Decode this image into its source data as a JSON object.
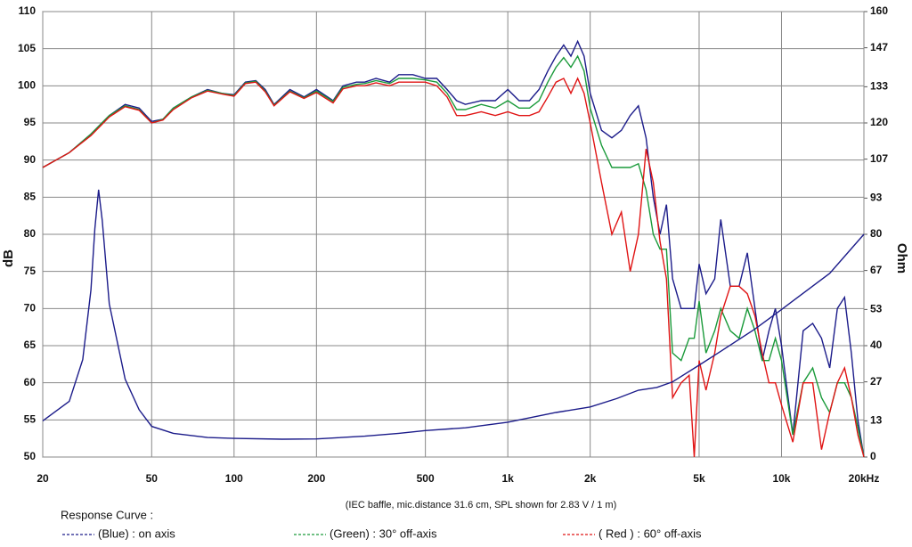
{
  "chart_data": {
    "type": "line",
    "x_log_scale": true,
    "grid": true,
    "y_label": "dB",
    "y2_label": "Ohm",
    "annotation": "(IEC baffle, mic.distance 31.6 cm, SPL shown for 2.83 V / 1 m)",
    "legend_title": "Response Curve :",
    "xlim": [
      20,
      20000
    ],
    "xticks": [
      20,
      50,
      100,
      200,
      500,
      {
        "value": 1000,
        "label": "1k"
      },
      {
        "value": 2000,
        "label": "2k"
      },
      {
        "value": 5000,
        "label": "5k"
      },
      {
        "value": 10000,
        "label": "10k"
      },
      {
        "value": 20000,
        "label": "20kHz"
      }
    ],
    "ylim": [
      50,
      110
    ],
    "yticks": [
      50,
      55,
      60,
      65,
      70,
      75,
      80,
      85,
      90,
      95,
      100,
      105,
      110
    ],
    "y2lim": [
      0,
      160
    ],
    "y2ticks": [
      0,
      13,
      27,
      40,
      53,
      67,
      80,
      93,
      107,
      120,
      133,
      147,
      160
    ],
    "x": [
      20,
      25,
      30,
      35,
      40,
      45,
      50,
      55,
      60,
      70,
      80,
      90,
      100,
      110,
      120,
      130,
      140,
      160,
      180,
      200,
      230,
      250,
      280,
      300,
      330,
      370,
      400,
      450,
      500,
      550,
      600,
      650,
      700,
      800,
      900,
      1000,
      1100,
      1200,
      1300,
      1400,
      1500,
      1600,
      1700,
      1800,
      1900,
      2000,
      2200,
      2400,
      2600,
      2800,
      3000,
      3200,
      3400,
      3600,
      3800,
      4000,
      4300,
      4600,
      4800,
      5000,
      5300,
      5700,
      6000,
      6500,
      7000,
      7500,
      8000,
      8500,
      9000,
      9500,
      10000,
      11000,
      12000,
      13000,
      14000,
      15000,
      16000,
      17000,
      18000,
      19000,
      20000
    ],
    "series": [
      {
        "name": "(Blue)  : on axis",
        "color": "#1c1c8a",
        "values": [
          89,
          91,
          93.5,
          96,
          97.5,
          97,
          95.2,
          95.5,
          97,
          98.5,
          99.5,
          99,
          98.8,
          100.5,
          100.7,
          99.5,
          97.5,
          99.5,
          98.5,
          99.5,
          98,
          100,
          100.5,
          100.5,
          101,
          100.5,
          101.5,
          101.5,
          101,
          101,
          99.5,
          98,
          97.5,
          98,
          98,
          99.5,
          98,
          98,
          99.5,
          102,
          104,
          105.5,
          104,
          106,
          104,
          99,
          94,
          93,
          94,
          96,
          97.3,
          93,
          85,
          80,
          84,
          74,
          70,
          70,
          70,
          76,
          72,
          74,
          82,
          73,
          73,
          77.5,
          70,
          63,
          67,
          70,
          65,
          53,
          67,
          68,
          66,
          62,
          70,
          71.5,
          64,
          55,
          50
        ]
      },
      {
        "name": "(Green) : 30° off-axis",
        "color": "#1a9a3a",
        "values": [
          89,
          91,
          93.5,
          96,
          97.3,
          96.8,
          95,
          95.5,
          97,
          98.5,
          99.4,
          99,
          98.7,
          100.4,
          100.6,
          99.3,
          97.4,
          99.3,
          98.4,
          99.3,
          97.9,
          99.8,
          100.2,
          100.3,
          100.7,
          100.3,
          101,
          101,
          100.8,
          100.5,
          99,
          96.8,
          96.8,
          97.5,
          97,
          98,
          97,
          97,
          98,
          100.5,
          102.5,
          103.8,
          102.5,
          104,
          102,
          97,
          92,
          89,
          89,
          89,
          89.5,
          86,
          80,
          78,
          78,
          64,
          63,
          66,
          66,
          71,
          64,
          67,
          70,
          67,
          66,
          70,
          67,
          63,
          63,
          66,
          63,
          53,
          60,
          62,
          58,
          56,
          60,
          60,
          58,
          54,
          50
        ]
      },
      {
        "name": "( Red ) : 60° off-axis",
        "color": "#e01414",
        "values": [
          89,
          91,
          93.3,
          95.8,
          97.2,
          96.7,
          95,
          95.4,
          96.8,
          98.4,
          99.3,
          98.9,
          98.6,
          100.3,
          100.5,
          99.2,
          97.3,
          99.2,
          98.3,
          99.1,
          97.7,
          99.6,
          100,
          100,
          100.4,
          100,
          100.5,
          100.5,
          100.5,
          100,
          98.5,
          96,
          96,
          96.5,
          96,
          96.5,
          96,
          96,
          96.5,
          98.5,
          100.5,
          101,
          99,
          101,
          99,
          95,
          87,
          80,
          83,
          75,
          80,
          91.5,
          87,
          79,
          74,
          58,
          60,
          61,
          50,
          63,
          59,
          64,
          69,
          73,
          73,
          72,
          69,
          64,
          60,
          60,
          57,
          52,
          60,
          60,
          51,
          56,
          60,
          62,
          58,
          53,
          50
        ]
      },
      {
        "axis": "y2",
        "color": "#1c1c8a",
        "x": [
          20,
          25,
          28,
          30,
          31,
          32,
          33,
          35,
          40,
          45,
          50,
          60,
          80,
          100,
          150,
          200,
          300,
          400,
          500,
          700,
          1000,
          1500,
          2000,
          2500,
          3000,
          3500,
          4000,
          5000,
          6000,
          8000,
          10000,
          15000,
          20000
        ],
        "values": [
          13,
          20,
          35,
          60,
          82,
          96,
          85,
          55,
          28,
          17,
          11,
          8.5,
          7,
          6.7,
          6.4,
          6.5,
          7.5,
          8.5,
          9.5,
          10.5,
          12.5,
          16,
          18,
          21,
          24,
          25,
          27,
          33,
          38,
          46,
          53,
          66,
          80
        ]
      }
    ]
  }
}
